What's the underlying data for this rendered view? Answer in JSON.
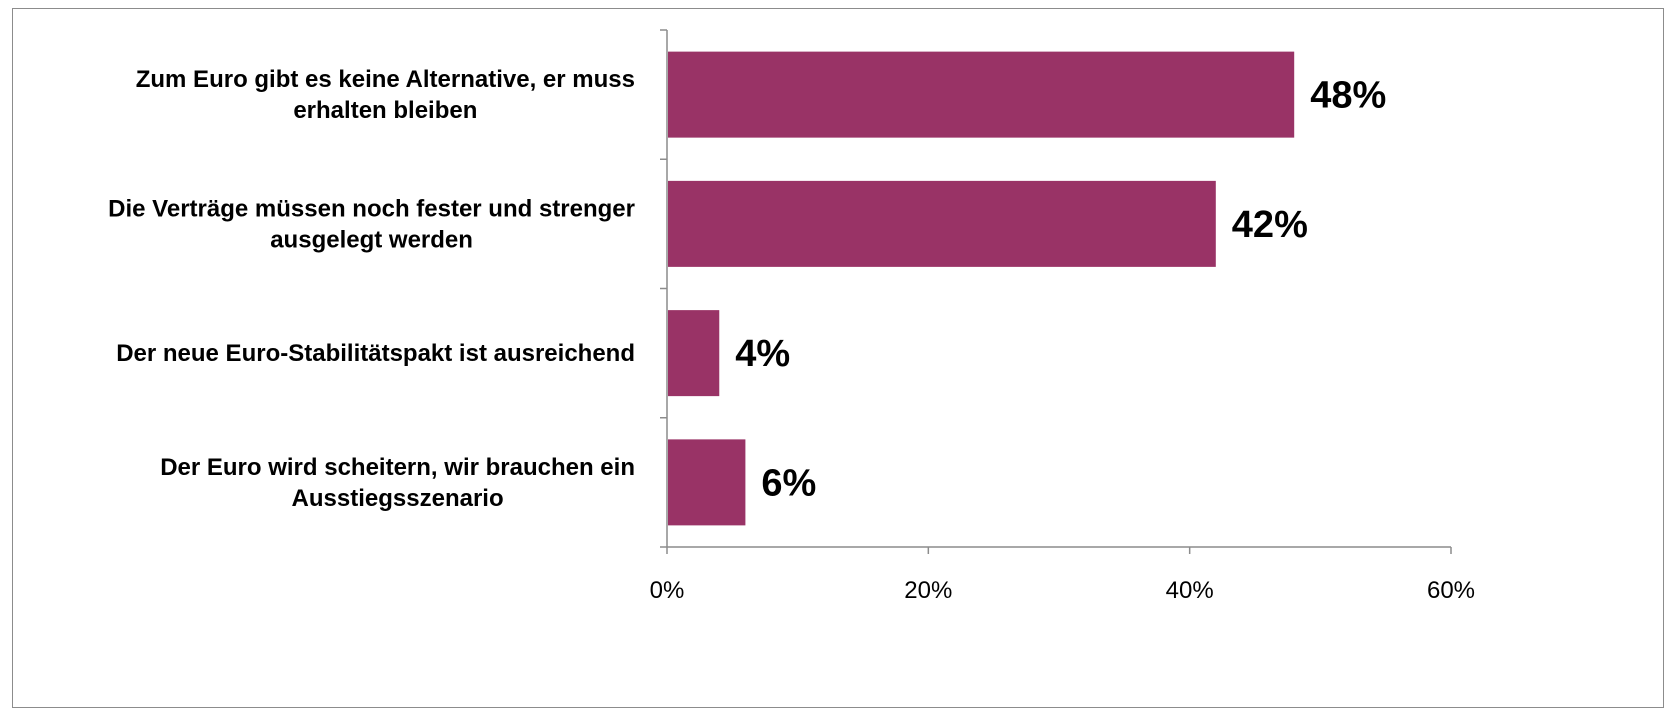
{
  "chart_data": {
    "type": "bar",
    "orientation": "horizontal",
    "categories": [
      [
        "Zum Euro gibt es keine Alternative,  er muss",
        "erhalten bleiben"
      ],
      [
        "Die Verträge müssen noch fester und strenger",
        "ausgelegt werden"
      ],
      [
        "Der neue Euro-Stabilitätspakt  ist ausreichend"
      ],
      [
        "Der Euro wird scheitern, wir brauchen ein",
        "Ausstiegsszenario"
      ]
    ],
    "values": [
      48,
      42,
      4,
      6
    ],
    "value_labels": [
      "48%",
      "42%",
      "4%",
      "6%"
    ],
    "xlim": [
      0,
      60
    ],
    "xticks": [
      0,
      20,
      40,
      60
    ],
    "xtick_labels": [
      "0%",
      "20%",
      "40%",
      "60%"
    ],
    "bar_color": "#993366",
    "axis_color": "#8c8c8c",
    "grid": false,
    "legend": "none"
  }
}
